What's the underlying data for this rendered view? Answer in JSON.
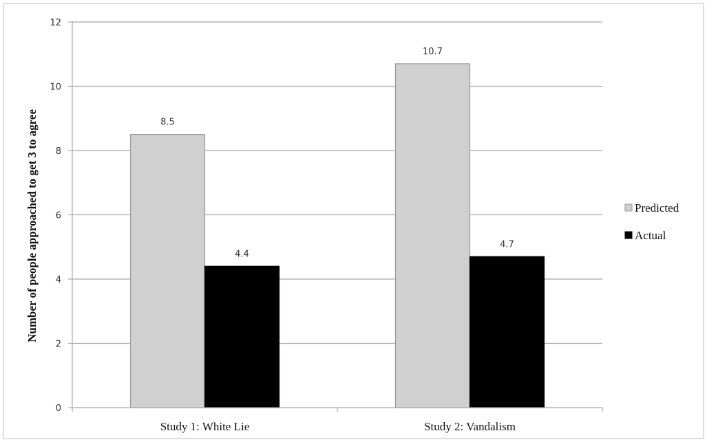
{
  "chart_data": {
    "type": "bar",
    "categories": [
      "Study 1: White Lie",
      "Study 2: Vandalism"
    ],
    "series": [
      {
        "name": "Predicted",
        "values": [
          8.5,
          10.7
        ],
        "color": "#d0d0d0",
        "stroke": "#9a9a9a"
      },
      {
        "name": "Actual",
        "values": [
          4.4,
          4.7
        ],
        "color": "#000000",
        "stroke": "#000000"
      }
    ],
    "data_labels": [
      [
        "8.5",
        "10.7"
      ],
      [
        "4.4",
        "4.7"
      ]
    ],
    "ylabel": "Number of people approached to get 3 to agree",
    "xlabel": "",
    "ylim": [
      0,
      12
    ],
    "yticks": [
      0,
      2,
      4,
      6,
      8,
      10,
      12
    ],
    "grid": true,
    "legend_position": "right"
  }
}
